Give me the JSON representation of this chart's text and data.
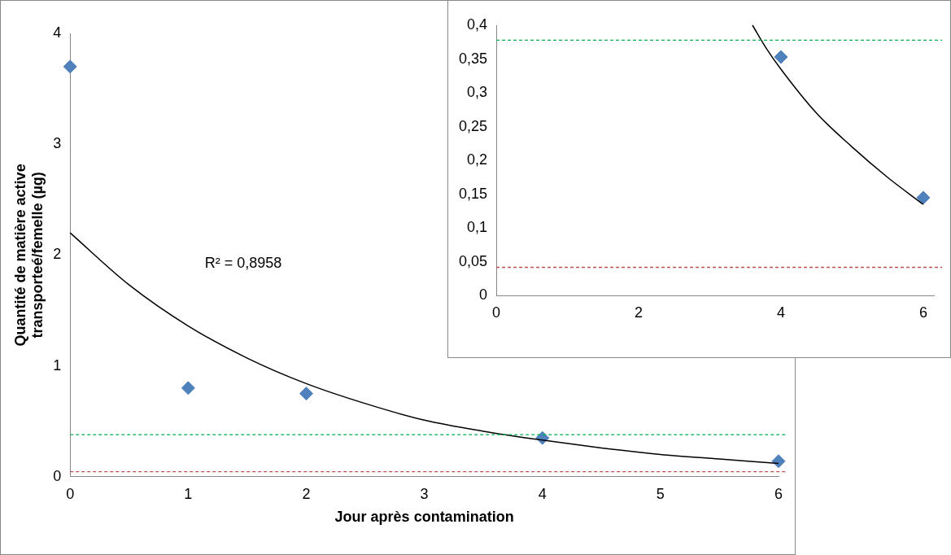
{
  "chart_data": [
    {
      "type": "scatter",
      "xlabel": "Jour après contamination",
      "ylabel": "Quantité de matière active\ntransporteé/femelle (µg)",
      "xlim": [
        0,
        6
      ],
      "xticks": [
        0,
        1,
        2,
        3,
        4,
        5,
        6
      ],
      "ylim": [
        0,
        4
      ],
      "yticks": [
        0,
        1,
        2,
        3,
        4
      ],
      "grid": false,
      "legend": false,
      "series": [
        {
          "type": "scatter",
          "color": "#4f81bd",
          "marker": "diamond",
          "x": [
            0,
            1,
            2,
            4,
            6
          ],
          "values": [
            3.7,
            0.8,
            0.75,
            0.35,
            0.14
          ]
        },
        {
          "type": "line",
          "color": "#000000",
          "marker": "none",
          "x": [
            0,
            0.5,
            1,
            1.5,
            2,
            2.5,
            3,
            3.5,
            4,
            4.5,
            5,
            5.5,
            6
          ],
          "values": [
            2.2,
            1.73,
            1.36,
            1.07,
            0.84,
            0.66,
            0.51,
            0.41,
            0.33,
            0.26,
            0.2,
            0.16,
            0.12
          ]
        }
      ],
      "ref_lines": [
        {
          "axis": "y",
          "value": 0.38,
          "color": "#00b050",
          "line_style": "dashed"
        },
        {
          "axis": "y",
          "value": 0.045,
          "color": "#c0504d",
          "line_style": "dashed"
        }
      ],
      "annotations": [
        "R² = 0,8958"
      ]
    },
    {
      "type": "scatter",
      "xlim": [
        0,
        6.15
      ],
      "xticks": [
        0,
        2,
        4,
        6
      ],
      "ylim": [
        0,
        0.4
      ],
      "yticks": [
        0,
        {
          "value": 0.05,
          "label": "0,05"
        },
        {
          "value": 0.1,
          "label": "0,1"
        },
        {
          "value": 0.15,
          "label": "0,15"
        },
        {
          "value": 0.2,
          "label": "0,2"
        },
        {
          "value": 0.25,
          "label": "0,25"
        },
        {
          "value": 0.3,
          "label": "0,3"
        },
        {
          "value": 0.35,
          "label": "0,35"
        },
        {
          "value": 0.4,
          "label": "0,4"
        }
      ],
      "grid": false,
      "legend": false,
      "series": [
        {
          "type": "scatter",
          "color": "#4f81bd",
          "marker": "diamond",
          "x": [
            4,
            6
          ],
          "values": [
            0.353,
            0.145
          ]
        },
        {
          "type": "line",
          "color": "#000000",
          "marker": "none",
          "x": [
            3.6,
            3.8,
            4,
            4.5,
            5,
            5.5,
            6
          ],
          "values": [
            0.4,
            0.365,
            0.335,
            0.27,
            0.22,
            0.175,
            0.135
          ]
        }
      ],
      "ref_lines": [
        {
          "axis": "y",
          "value": 0.378,
          "color": "#00b050",
          "line_style": "dashed"
        },
        {
          "axis": "y",
          "value": 0.042,
          "color": "#c0504d",
          "line_style": "dashed"
        }
      ]
    }
  ]
}
